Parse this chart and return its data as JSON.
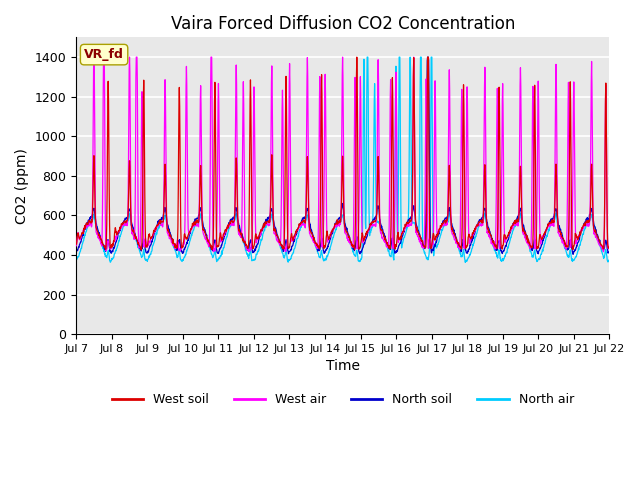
{
  "title": "Vaira Forced Diffusion CO2 Concentration",
  "xlabel": "Time",
  "ylabel": "CO2 (ppm)",
  "ylim": [
    0,
    1500
  ],
  "yticks": [
    0,
    200,
    400,
    600,
    800,
    1000,
    1200,
    1400
  ],
  "legend_labels": [
    "West soil",
    "West air",
    "North soil",
    "North air"
  ],
  "legend_colors": [
    "#dd0000",
    "#ff00ff",
    "#0000cc",
    "#00ccff"
  ],
  "annotation_text": "VR_fd",
  "plot_bg_color": "#e8e8e8",
  "grid_color": "#ffffff",
  "title_fontsize": 12,
  "axis_fontsize": 10,
  "tick_fontsize": 9,
  "start_day": 7,
  "end_day": 22,
  "n_points": 1500
}
